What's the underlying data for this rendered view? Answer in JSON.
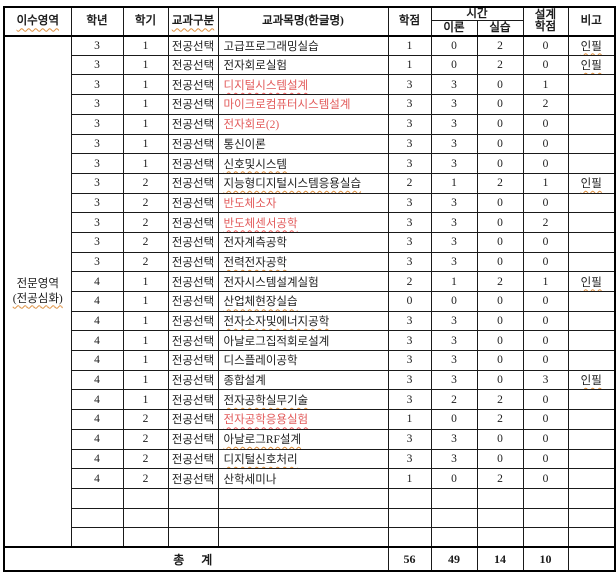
{
  "colors": {
    "red_course_text": "#e25a5a",
    "squiggle_underline": "#dd8f3f",
    "text": "#1c1c1c",
    "border": "#000000"
  },
  "header": {
    "area": "이수영역",
    "year": "학년",
    "semester": "학기",
    "category": "교과구분",
    "course": "교과목명(한글명)",
    "credits": "학점",
    "hours": "시간",
    "theory": "이론",
    "practice": "실습",
    "design_line1": "설계",
    "design_line2": "학점",
    "remarks": "비고"
  },
  "area_label": {
    "line1": "전문영역",
    "line2": "(전공심화)"
  },
  "rows": [
    {
      "year": "3",
      "semester": "1",
      "category": "전공선택",
      "course": "고급프로그래밍실습",
      "credits": "1",
      "theory": "0",
      "practice": "2",
      "design": "0",
      "remark": "인필",
      "style": "black",
      "squiggle": false
    },
    {
      "year": "3",
      "semester": "1",
      "category": "전공선택",
      "course": "전자회로실험",
      "credits": "1",
      "theory": "0",
      "practice": "2",
      "design": "0",
      "remark": "인필",
      "style": "black",
      "squiggle": false
    },
    {
      "year": "3",
      "semester": "1",
      "category": "전공선택",
      "course": "디지털시스템설계",
      "credits": "3",
      "theory": "3",
      "practice": "0",
      "design": "1",
      "remark": "",
      "style": "red",
      "squiggle": true
    },
    {
      "year": "3",
      "semester": "1",
      "category": "전공선택",
      "course": "마이크로컴퓨터시스템설계",
      "credits": "3",
      "theory": "3",
      "practice": "0",
      "design": "2",
      "remark": "",
      "style": "red",
      "squiggle": false
    },
    {
      "year": "3",
      "semester": "1",
      "category": "전공선택",
      "course": "전자회로(2)",
      "credits": "3",
      "theory": "3",
      "practice": "0",
      "design": "0",
      "remark": "",
      "style": "red",
      "squiggle": false
    },
    {
      "year": "3",
      "semester": "1",
      "category": "전공선택",
      "course": "통신이론",
      "credits": "3",
      "theory": "3",
      "practice": "0",
      "design": "0",
      "remark": "",
      "style": "black",
      "squiggle": false
    },
    {
      "year": "3",
      "semester": "1",
      "category": "전공선택",
      "course": "신호및시스템",
      "credits": "3",
      "theory": "3",
      "practice": "0",
      "design": "0",
      "remark": "",
      "style": "black",
      "squiggle": true
    },
    {
      "year": "3",
      "semester": "2",
      "category": "전공선택",
      "course": "지능형디지털시스템응용실습",
      "credits": "2",
      "theory": "1",
      "practice": "2",
      "design": "1",
      "remark": "인필",
      "style": "black",
      "squiggle": true
    },
    {
      "year": "3",
      "semester": "2",
      "category": "전공선택",
      "course": "반도체소자",
      "credits": "3",
      "theory": "3",
      "practice": "0",
      "design": "0",
      "remark": "",
      "style": "red",
      "squiggle": false
    },
    {
      "year": "3",
      "semester": "2",
      "category": "전공선택",
      "course": "반도체센서공학",
      "credits": "3",
      "theory": "3",
      "practice": "0",
      "design": "2",
      "remark": "",
      "style": "red",
      "squiggle": true
    },
    {
      "year": "3",
      "semester": "2",
      "category": "전공선택",
      "course": "전자계측공학",
      "credits": "3",
      "theory": "3",
      "practice": "0",
      "design": "0",
      "remark": "",
      "style": "black",
      "squiggle": false
    },
    {
      "year": "3",
      "semester": "2",
      "category": "전공선택",
      "course": "전력전자공학",
      "credits": "3",
      "theory": "3",
      "practice": "0",
      "design": "0",
      "remark": "",
      "style": "black",
      "squiggle": true
    },
    {
      "year": "4",
      "semester": "1",
      "category": "전공선택",
      "course": "전자시스템설계실험",
      "credits": "2",
      "theory": "1",
      "practice": "2",
      "design": "1",
      "remark": "인필",
      "style": "black",
      "squiggle": false
    },
    {
      "year": "4",
      "semester": "1",
      "category": "전공선택",
      "course": "산업체현장실습",
      "credits": "0",
      "theory": "0",
      "practice": "0",
      "design": "0",
      "remark": "",
      "style": "black",
      "squiggle": true
    },
    {
      "year": "4",
      "semester": "1",
      "category": "전공선택",
      "course": "전자소자및에너지공학",
      "credits": "3",
      "theory": "3",
      "practice": "0",
      "design": "0",
      "remark": "",
      "style": "black",
      "squiggle": true
    },
    {
      "year": "4",
      "semester": "1",
      "category": "전공선택",
      "course": "아날로그집적회로설계",
      "credits": "3",
      "theory": "3",
      "practice": "0",
      "design": "0",
      "remark": "",
      "style": "black",
      "squiggle": false
    },
    {
      "year": "4",
      "semester": "1",
      "category": "전공선택",
      "course": "디스플레이공학",
      "credits": "3",
      "theory": "3",
      "practice": "0",
      "design": "0",
      "remark": "",
      "style": "black",
      "squiggle": false
    },
    {
      "year": "4",
      "semester": "1",
      "category": "전공선택",
      "course": "종합설계",
      "credits": "3",
      "theory": "3",
      "practice": "0",
      "design": "3",
      "remark": "인필",
      "style": "black",
      "squiggle": false
    },
    {
      "year": "4",
      "semester": "1",
      "category": "전공선택",
      "course": "전자공학실무기술",
      "credits": "3",
      "theory": "2",
      "practice": "2",
      "design": "0",
      "remark": "",
      "style": "black",
      "squiggle": true
    },
    {
      "year": "4",
      "semester": "2",
      "category": "전공선택",
      "course": "전자공학응용실험",
      "credits": "1",
      "theory": "0",
      "practice": "2",
      "design": "0",
      "remark": "",
      "style": "red",
      "squiggle": true
    },
    {
      "year": "4",
      "semester": "2",
      "category": "전공선택",
      "course": "아날로그RF설계",
      "credits": "3",
      "theory": "3",
      "practice": "0",
      "design": "0",
      "remark": "",
      "style": "black",
      "squiggle": true
    },
    {
      "year": "4",
      "semester": "2",
      "category": "전공선택",
      "course": "디지털신호처리",
      "credits": "3",
      "theory": "3",
      "practice": "0",
      "design": "0",
      "remark": "",
      "style": "black",
      "squiggle": true
    },
    {
      "year": "4",
      "semester": "2",
      "category": "전공선택",
      "course": "산학세미나",
      "credits": "1",
      "theory": "0",
      "practice": "2",
      "design": "0",
      "remark": "",
      "style": "black",
      "squiggle": false
    }
  ],
  "empty_rows": 3,
  "total": {
    "label": "총 계",
    "credits": "56",
    "theory": "49",
    "practice": "14",
    "design": "10",
    "remark": ""
  }
}
